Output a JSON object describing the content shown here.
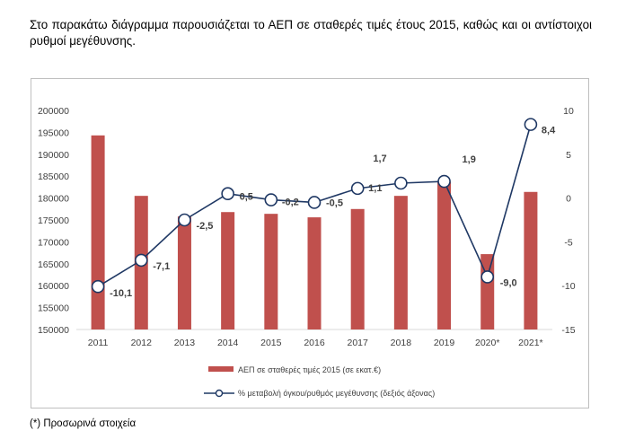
{
  "intro_text": "Στο παρακάτω διάγραμμα παρουσιάζεται το ΑΕΠ σε σταθερές τιμές έτους 2015, καθώς και οι αντίστοιχοι ρυθμοί μεγέθυνσης.",
  "footnote": "(*) Προσωρινά στοιχεία",
  "colors": {
    "bars": "#c0504d",
    "line": "#1f3864",
    "marker_fill": "#ffffff",
    "grid": "#d9d9d9"
  },
  "chart_data": {
    "type": "bar",
    "categories": [
      "2011",
      "2012",
      "2013",
      "2014",
      "2015",
      "2016",
      "2017",
      "2018",
      "2019",
      "2020*",
      "2021*"
    ],
    "series": [
      {
        "name": "ΑΕΠ σε σταθερές τιμές 2015 (σε εκατ.€)",
        "type": "bar",
        "axis": "left",
        "values": [
          194300,
          180500,
          175800,
          176800,
          176400,
          175600,
          177500,
          180500,
          183700,
          167200,
          181400
        ]
      },
      {
        "name": "% μεταβολή όγκου/ρυθμός μεγέθυνσης (δεξιός άξονας)",
        "type": "line",
        "axis": "right",
        "values": [
          -10.1,
          -7.1,
          -2.5,
          0.5,
          -0.2,
          -0.5,
          1.1,
          1.7,
          1.9,
          -9.0,
          8.4
        ],
        "labels": [
          "-10,1",
          "-7,1",
          "-2,5",
          "0,5",
          "-0,2",
          "-0,5",
          "1,1",
          "1,7",
          "1,9",
          "-9,0",
          "8,4"
        ]
      }
    ],
    "y_left": {
      "lim": [
        150000,
        200000
      ],
      "ticks": [
        "150000",
        "155000",
        "160000",
        "165000",
        "170000",
        "175000",
        "180000",
        "185000",
        "190000",
        "195000",
        "200000"
      ]
    },
    "y_right": {
      "lim": [
        -15,
        10
      ],
      "ticks": [
        "-15",
        "-10",
        "-5",
        "0",
        "5",
        "10"
      ]
    },
    "grid": false,
    "legend_position": "bottom"
  }
}
